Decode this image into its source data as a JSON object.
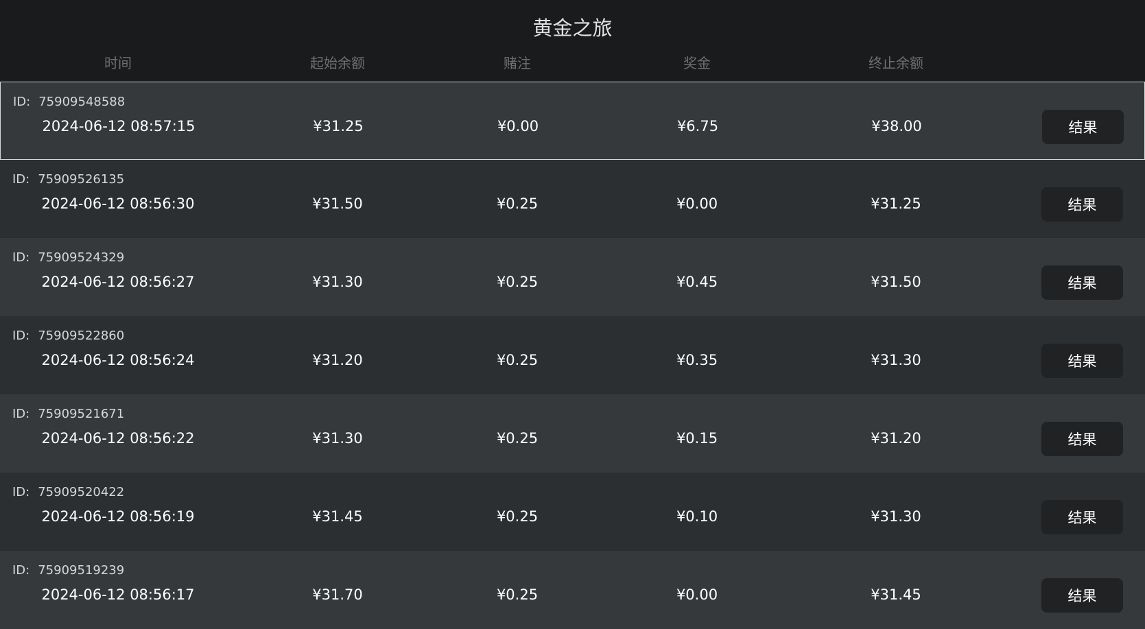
{
  "title": "黄金之旅",
  "columns": [
    "时间",
    "起始余额",
    "赌注",
    "奖金",
    "终止余额"
  ],
  "id_label": "ID:",
  "result_label": "结果",
  "rows": [
    {
      "id": "75909548588",
      "time": "2024-06-12 08:57:15",
      "start": "¥31.25",
      "bet": "¥0.00",
      "prize": "¥6.75",
      "end": "¥38.00"
    },
    {
      "id": "75909526135",
      "time": "2024-06-12 08:56:30",
      "start": "¥31.50",
      "bet": "¥0.25",
      "prize": "¥0.00",
      "end": "¥31.25"
    },
    {
      "id": "75909524329",
      "time": "2024-06-12 08:56:27",
      "start": "¥31.30",
      "bet": "¥0.25",
      "prize": "¥0.45",
      "end": "¥31.50"
    },
    {
      "id": "75909522860",
      "time": "2024-06-12 08:56:24",
      "start": "¥31.20",
      "bet": "¥0.25",
      "prize": "¥0.35",
      "end": "¥31.30"
    },
    {
      "id": "75909521671",
      "time": "2024-06-12 08:56:22",
      "start": "¥31.30",
      "bet": "¥0.25",
      "prize": "¥0.15",
      "end": "¥31.20"
    },
    {
      "id": "75909520422",
      "time": "2024-06-12 08:56:19",
      "start": "¥31.45",
      "bet": "¥0.25",
      "prize": "¥0.10",
      "end": "¥31.30"
    },
    {
      "id": "75909519239",
      "time": "2024-06-12 08:56:17",
      "start": "¥31.70",
      "bet": "¥0.25",
      "prize": "¥0.00",
      "end": "¥31.45"
    }
  ]
}
